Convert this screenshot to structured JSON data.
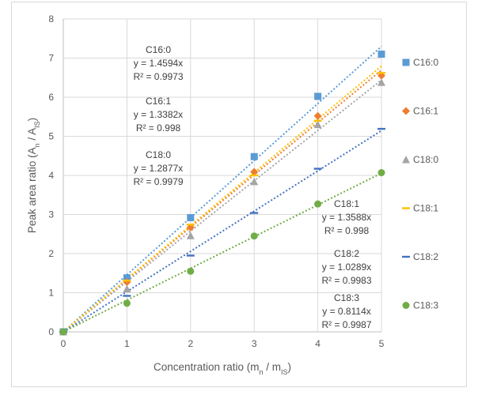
{
  "chart_data": {
    "type": "scatter",
    "title": "",
    "xlabel": "Concentration ratio (m_n / m_IS)",
    "ylabel": "Peak area ratio (A_n / A_IS)",
    "xlim": [
      0,
      5
    ],
    "ylim": [
      0,
      8
    ],
    "x_ticks": [
      "0",
      "1",
      "2",
      "3",
      "4",
      "5"
    ],
    "y_ticks": [
      "0",
      "1",
      "2",
      "3",
      "4",
      "5",
      "6",
      "7",
      "8"
    ],
    "grid": "vertical and horizontal major gridlines",
    "legend_position": "right",
    "series": [
      {
        "name": "C16:0",
        "marker": "square",
        "color": "#5b9bd5",
        "x": [
          0,
          1,
          2,
          3,
          4,
          5
        ],
        "y": [
          0,
          1.38,
          2.92,
          4.48,
          6.02,
          7.1
        ],
        "slope": 1.4594,
        "equation": "y = 1.4594x",
        "r2": "R² = 0.9973"
      },
      {
        "name": "C16:1",
        "marker": "diamond",
        "color": "#ed7d31",
        "x": [
          0,
          1,
          2,
          3,
          4,
          5
        ],
        "y": [
          0,
          1.27,
          2.67,
          4.09,
          5.52,
          6.55
        ],
        "slope": 1.3382,
        "equation": "y = 1.3382x",
        "r2": "R² = 0.998"
      },
      {
        "name": "C18:0",
        "marker": "triangle",
        "color": "#a5a5a5",
        "x": [
          0,
          1,
          2,
          3,
          4,
          5
        ],
        "y": [
          0,
          1.1,
          2.46,
          3.84,
          5.3,
          6.38
        ],
        "slope": 1.2877,
        "equation": "y = 1.2877x",
        "r2": "R² = 0.9979"
      },
      {
        "name": "C18:1",
        "marker": "dash",
        "color": "#ffc000",
        "x": [
          0,
          1,
          2,
          3,
          4,
          5
        ],
        "y": [
          0,
          1.31,
          2.74,
          4.0,
          5.4,
          6.62
        ],
        "slope": 1.3588,
        "equation": "y = 1.3588x",
        "r2": "R² = 0.998"
      },
      {
        "name": "C18:2",
        "marker": "dash",
        "color": "#4472c4",
        "x": [
          0,
          1,
          2,
          3,
          4,
          5
        ],
        "y": [
          0,
          0.92,
          1.95,
          3.04,
          4.17,
          5.19
        ],
        "slope": 1.0289,
        "equation": "y = 1.0289x",
        "r2": "R² = 0.9983"
      },
      {
        "name": "C18:3",
        "marker": "circle",
        "color": "#70ad47",
        "x": [
          0,
          1,
          2,
          3,
          4,
          5
        ],
        "y": [
          0,
          0.73,
          1.55,
          2.45,
          3.27,
          4.07
        ],
        "slope": 0.8114,
        "equation": "y = 0.8114x",
        "r2": "R² = 0.9987"
      }
    ]
  }
}
